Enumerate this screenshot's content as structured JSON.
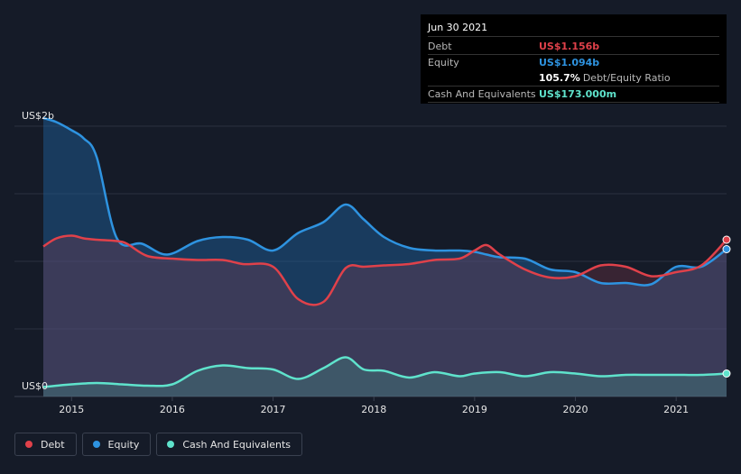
{
  "chart_data": {
    "type": "area",
    "y_top_label": "US$2b",
    "y_bottom_label": "US$0",
    "ylim": [
      0,
      2.0
    ],
    "xlim": [
      2014.72,
      2021.5
    ],
    "x_ticks": [
      {
        "value": 2015,
        "label": "2015"
      },
      {
        "value": 2016,
        "label": "2016"
      },
      {
        "value": 2017,
        "label": "2017"
      },
      {
        "value": 2018,
        "label": "2018"
      },
      {
        "value": 2019,
        "label": "2019"
      },
      {
        "value": 2020,
        "label": "2020"
      },
      {
        "value": 2021,
        "label": "2021"
      }
    ],
    "series": [
      {
        "name": "Equity",
        "color": "#2e93e0",
        "x": [
          2014.72,
          2014.85,
          2015.0,
          2015.12,
          2015.25,
          2015.45,
          2015.7,
          2015.95,
          2016.25,
          2016.5,
          2016.75,
          2017.0,
          2017.25,
          2017.5,
          2017.72,
          2017.9,
          2018.1,
          2018.35,
          2018.6,
          2018.85,
          2019.0,
          2019.12,
          2019.25,
          2019.5,
          2019.75,
          2020.0,
          2020.25,
          2020.5,
          2020.75,
          2021.0,
          2021.25,
          2021.5
        ],
        "y": [
          2.06,
          2.03,
          1.97,
          1.91,
          1.77,
          1.17,
          1.13,
          1.05,
          1.15,
          1.18,
          1.16,
          1.08,
          1.21,
          1.29,
          1.42,
          1.31,
          1.18,
          1.1,
          1.08,
          1.08,
          1.07,
          1.05,
          1.03,
          1.02,
          0.94,
          0.92,
          0.84,
          0.84,
          0.83,
          0.96,
          0.96,
          1.09
        ]
      },
      {
        "name": "Debt",
        "color": "#e0414a",
        "x": [
          2014.72,
          2014.85,
          2015.0,
          2015.12,
          2015.25,
          2015.45,
          2015.55,
          2015.75,
          2016.0,
          2016.25,
          2016.5,
          2016.7,
          2017.0,
          2017.25,
          2017.5,
          2017.72,
          2017.9,
          2018.1,
          2018.35,
          2018.6,
          2018.85,
          2019.0,
          2019.12,
          2019.25,
          2019.5,
          2019.75,
          2020.0,
          2020.25,
          2020.5,
          2020.75,
          2021.0,
          2021.25,
          2021.5
        ],
        "y": [
          1.11,
          1.17,
          1.19,
          1.17,
          1.16,
          1.15,
          1.13,
          1.04,
          1.02,
          1.01,
          1.01,
          0.98,
          0.96,
          0.72,
          0.7,
          0.95,
          0.96,
          0.97,
          0.98,
          1.01,
          1.02,
          1.08,
          1.12,
          1.05,
          0.94,
          0.88,
          0.89,
          0.97,
          0.96,
          0.89,
          0.92,
          0.97,
          1.16
        ]
      },
      {
        "name": "Cash And Equivalents",
        "color": "#5fe3cc",
        "x": [
          2014.72,
          2014.85,
          2015.0,
          2015.25,
          2015.5,
          2015.75,
          2016.0,
          2016.25,
          2016.5,
          2016.75,
          2017.0,
          2017.25,
          2017.5,
          2017.72,
          2017.9,
          2018.1,
          2018.35,
          2018.6,
          2018.85,
          2019.0,
          2019.25,
          2019.5,
          2019.75,
          2020.0,
          2020.25,
          2020.5,
          2020.75,
          2021.0,
          2021.25,
          2021.5
        ],
        "y": [
          0.07,
          0.08,
          0.09,
          0.1,
          0.09,
          0.08,
          0.09,
          0.19,
          0.23,
          0.21,
          0.2,
          0.13,
          0.21,
          0.29,
          0.2,
          0.19,
          0.14,
          0.18,
          0.15,
          0.17,
          0.18,
          0.15,
          0.18,
          0.17,
          0.15,
          0.16,
          0.16,
          0.16,
          0.16,
          0.17
        ]
      }
    ],
    "gridlines_y": [
      0.5,
      1.0,
      1.5,
      2.0
    ],
    "grid": true,
    "legend_position": "bottom-left"
  },
  "tooltip": {
    "date": "Jun 30 2021",
    "rows": [
      {
        "label": "Debt",
        "value": "US$1.156b",
        "color": "#e0414a"
      },
      {
        "label": "Equity",
        "value": "US$1.094b",
        "color": "#2e93e0"
      },
      {
        "label": "",
        "value": "105.7%",
        "sub": "Debt/Equity Ratio",
        "color": "#ffffff"
      },
      {
        "label": "Cash And Equivalents",
        "value": "US$173.000m",
        "color": "#5fe3cc"
      }
    ]
  },
  "legend": [
    {
      "label": "Debt",
      "color": "#e0414a"
    },
    {
      "label": "Equity",
      "color": "#2e93e0"
    },
    {
      "label": "Cash And Equivalents",
      "color": "#5fe3cc"
    }
  ]
}
